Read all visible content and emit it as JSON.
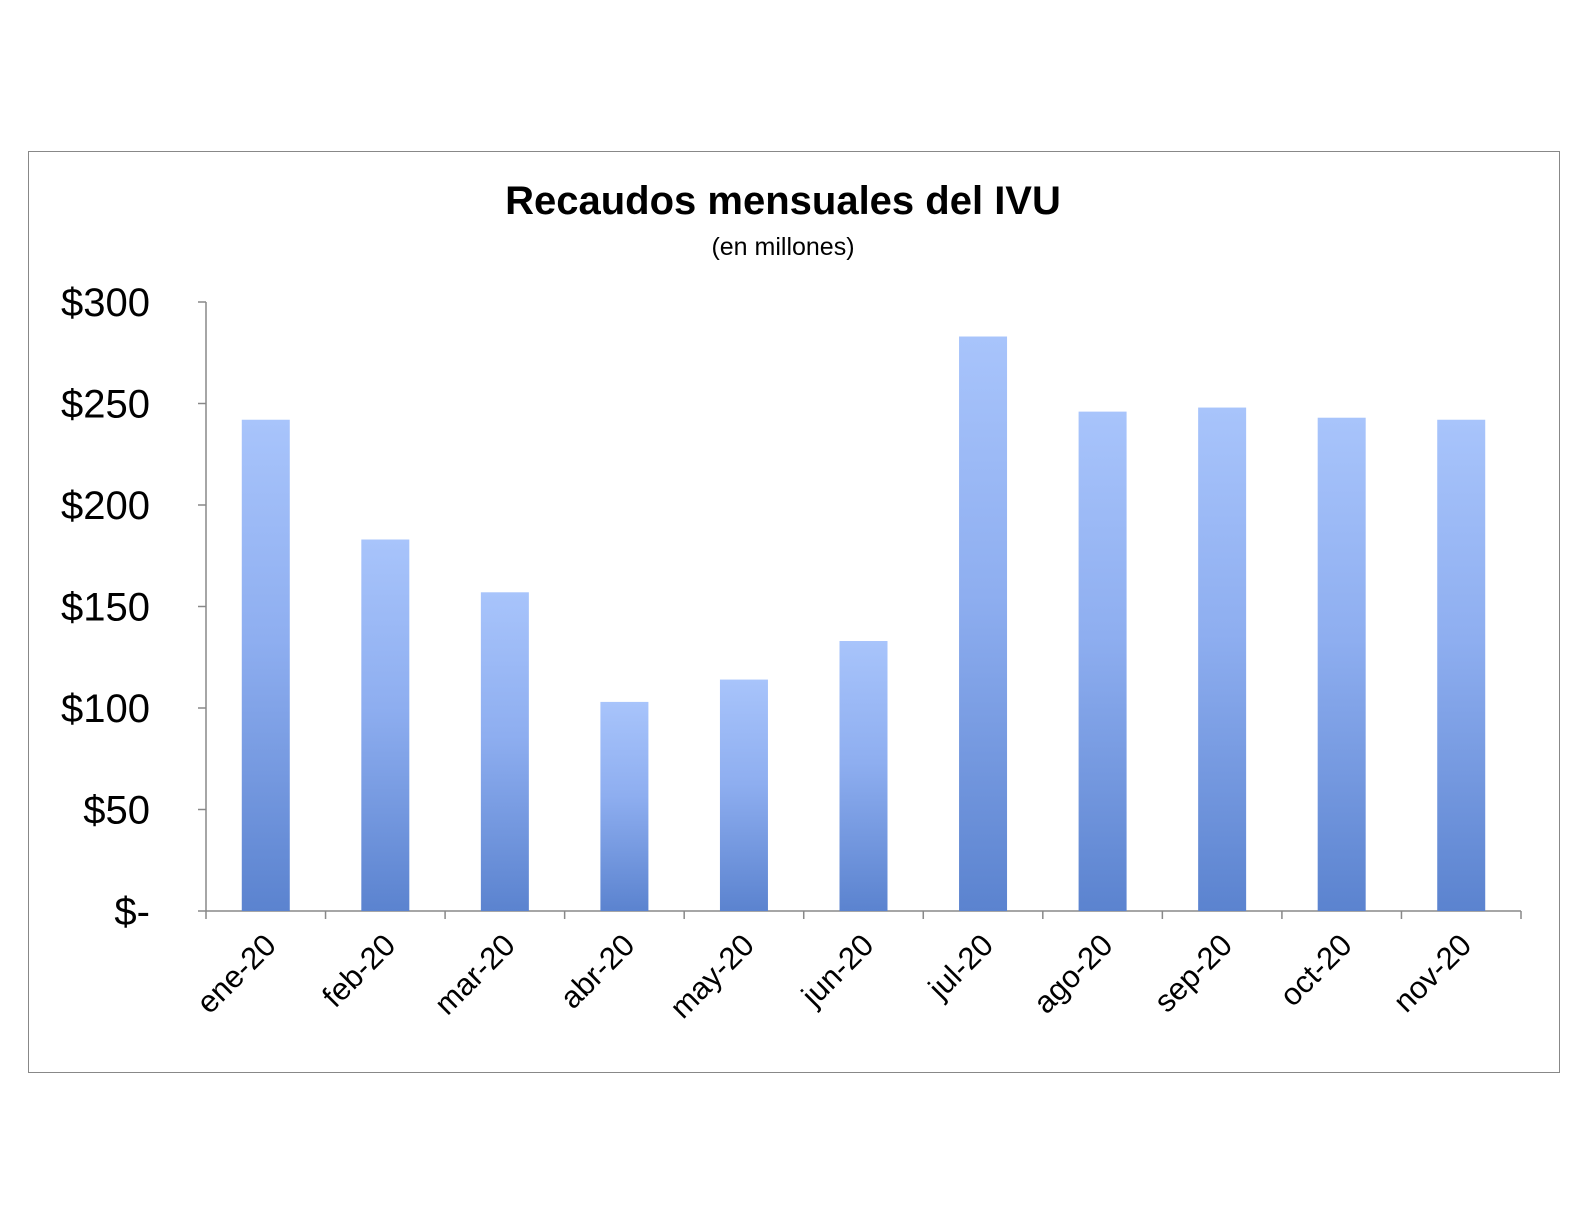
{
  "chart_data": {
    "type": "bar",
    "title": "Recaudos mensuales del IVU",
    "subtitle": "(en millones)",
    "categories": [
      "ene-20",
      "feb-20",
      "mar-20",
      "abr-20",
      "may-20",
      "jun-20",
      "jul-20",
      "ago-20",
      "sep-20",
      "oct-20",
      "nov-20"
    ],
    "values": [
      242,
      183,
      157,
      103,
      114,
      133,
      283,
      246,
      248,
      243,
      242
    ],
    "ylim": [
      0,
      300
    ],
    "yticks": [
      0,
      50,
      100,
      150,
      200,
      250,
      300
    ],
    "ytick_labels": [
      "$-",
      "$50",
      "$100",
      "$150",
      "$200",
      "$250",
      "$300"
    ],
    "grid": false,
    "legend": "none",
    "colors": {
      "bar_top": "#a8c4fb",
      "bar_mid": "#8eaef0",
      "bar_bottom": "#5b83cf",
      "axis": "#888888",
      "frame": "#888888"
    }
  }
}
